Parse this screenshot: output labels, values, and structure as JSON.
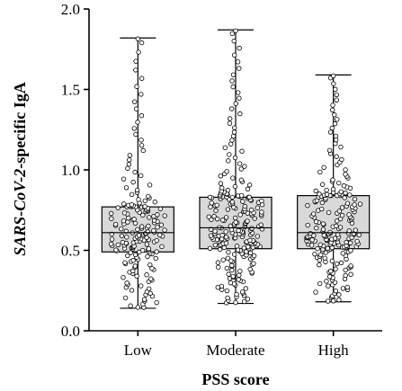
{
  "chart_data": {
    "type": "box",
    "title": "",
    "xlabel": "PSS score",
    "ylabel_italic": "SARS-CoV-2",
    "ylabel_rest": "-specific IgA",
    "ylim": [
      0,
      2.0
    ],
    "yticks": [
      0.0,
      0.5,
      1.0,
      1.5,
      2.0
    ],
    "ytick_labels": [
      "0.0",
      "0.5",
      "1.0",
      "1.5",
      "2.0"
    ],
    "categories": [
      "Low",
      "Moderate",
      "High"
    ],
    "series": [
      {
        "category": "Low",
        "min": 0.14,
        "q1": 0.49,
        "median": 0.61,
        "q3": 0.77,
        "max": 1.82,
        "n": 180
      },
      {
        "category": "Moderate",
        "min": 0.17,
        "q1": 0.51,
        "median": 0.64,
        "q3": 0.83,
        "max": 1.87,
        "n": 230
      },
      {
        "category": "High",
        "min": 0.18,
        "q1": 0.51,
        "median": 0.61,
        "q3": 0.84,
        "max": 1.59,
        "n": 210
      }
    ],
    "point_style": {
      "fill": "#ffffff",
      "stroke": "#000000"
    },
    "box_fill": "#d9d9d9"
  }
}
